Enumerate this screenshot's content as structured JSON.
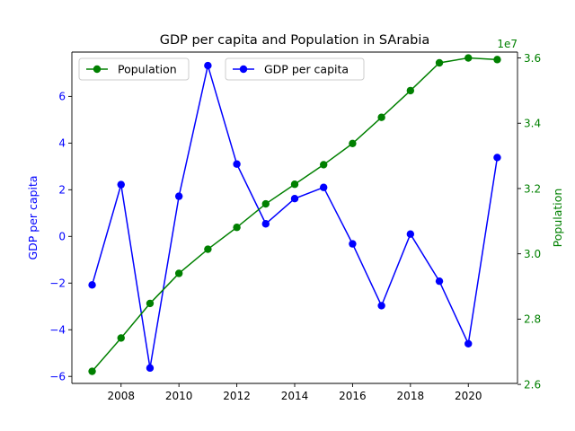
{
  "chart_data": {
    "type": "line",
    "title": "GDP per capita and Population in SArabia",
    "x": [
      2007,
      2008,
      2009,
      2010,
      2011,
      2012,
      2013,
      2014,
      2015,
      2016,
      2017,
      2018,
      2019,
      2020,
      2021
    ],
    "xticks": [
      "2008",
      "2010",
      "2012",
      "2014",
      "2016",
      "2018",
      "2020"
    ],
    "xtick_values": [
      2008,
      2010,
      2012,
      2014,
      2016,
      2018,
      2020
    ],
    "xlim": [
      2006.3,
      2021.7
    ],
    "left_axis": {
      "label": "GDP per capita",
      "color": "#0000ff",
      "ylim": [
        -6.3,
        7.9
      ],
      "tick_values": [
        -6,
        -4,
        -2,
        0,
        2,
        4,
        6
      ],
      "ticks": [
        "−6",
        "−4",
        "−2",
        "0",
        "2",
        "4",
        "6"
      ]
    },
    "right_axis": {
      "label": "Population",
      "color": "#008000",
      "offset_text": "1e7",
      "ylim": [
        2.603,
        3.618
      ],
      "tick_values": [
        2.6,
        2.8,
        3.0,
        3.2,
        3.4,
        3.6
      ],
      "ticks": [
        "2.6",
        "2.8",
        "3.0",
        "3.2",
        "3.4",
        "3.6"
      ]
    },
    "series": [
      {
        "name": "GDP per capita",
        "axis": "left",
        "color": "#0000ff",
        "values": [
          -2.08,
          2.22,
          -5.64,
          1.72,
          7.32,
          3.1,
          0.54,
          1.62,
          2.1,
          -0.32,
          -2.97,
          0.1,
          -1.92,
          -4.6,
          3.38
        ]
      },
      {
        "name": "Population",
        "axis": "right",
        "color": "#008000",
        "values": [
          2.64,
          2.742,
          2.848,
          2.94,
          3.014,
          3.081,
          3.153,
          3.213,
          3.273,
          3.338,
          3.418,
          3.5,
          3.585,
          3.6,
          3.595
        ]
      }
    ],
    "legends": [
      {
        "placement": "upper-left",
        "entries": [
          "Population"
        ]
      },
      {
        "placement": "upper-center",
        "entries": [
          "GDP per capita"
        ]
      }
    ]
  }
}
